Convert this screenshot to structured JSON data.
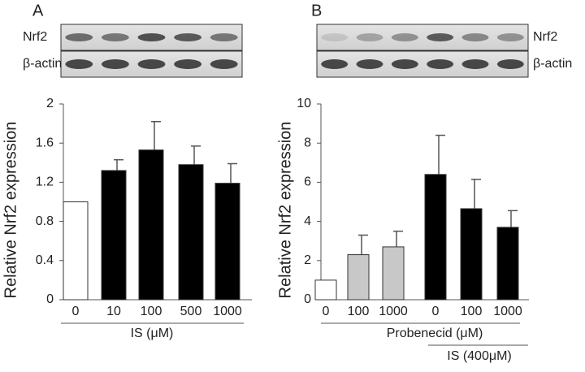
{
  "chart_data": [
    {
      "type": "bar",
      "panel_label": "A",
      "blot_labels": [
        "Nrf2",
        "β-actin"
      ],
      "ylabel": "Relative Nrf2 expression",
      "xlabels": [
        "IS (μM)"
      ],
      "categories": [
        "0",
        "10",
        "100",
        "500",
        "1000"
      ],
      "values": [
        1.0,
        1.32,
        1.53,
        1.38,
        1.19
      ],
      "errors": [
        0,
        0.11,
        0.29,
        0.19,
        0.2
      ],
      "colors": [
        "#ffffff",
        "#000000",
        "#000000",
        "#000000",
        "#000000"
      ],
      "ylim": [
        0,
        2
      ],
      "yticks": [
        0,
        0.4,
        0.8,
        1.2,
        1.6,
        2
      ]
    },
    {
      "type": "bar",
      "panel_label": "B",
      "blot_labels": [
        "Nrf2",
        "β-actin"
      ],
      "ylabel": "Relative Nrf2 expression",
      "xlabels": [
        "Probenecid (μM)",
        "IS (400μM)"
      ],
      "categories": [
        "0",
        "100",
        "1000",
        "0",
        "100",
        "1000"
      ],
      "values": [
        1.0,
        2.3,
        2.7,
        6.4,
        4.65,
        3.7
      ],
      "errors": [
        0,
        1.0,
        0.8,
        2.0,
        1.5,
        0.85
      ],
      "colors": [
        "#ffffff",
        "#c8c8c8",
        "#c8c8c8",
        "#000000",
        "#000000",
        "#000000"
      ],
      "ylim": [
        0,
        10
      ],
      "yticks": [
        0,
        2,
        4,
        6,
        8,
        10
      ]
    }
  ]
}
